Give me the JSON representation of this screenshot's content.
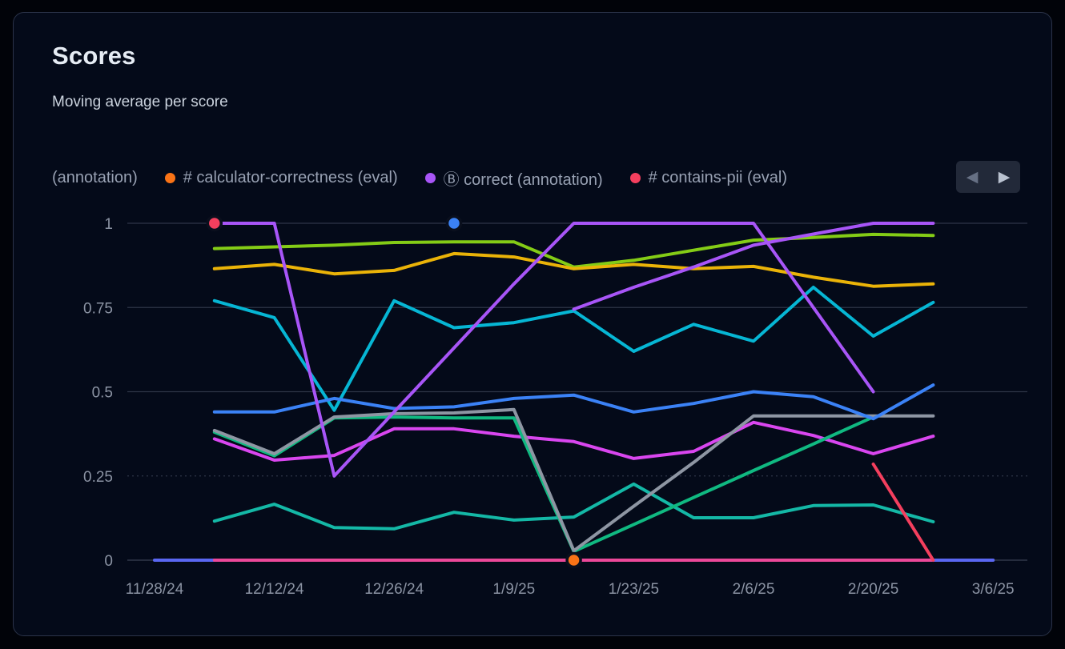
{
  "card": {
    "title": "Scores",
    "subtitle": "Moving average per score"
  },
  "legend": {
    "items": [
      {
        "label": "(annotation)",
        "color": null
      },
      {
        "label": "# calculator-correctness (eval)",
        "color": "#f97316"
      },
      {
        "label": "Ⓑ correct (annotation)",
        "color": "#a855f7"
      },
      {
        "label": "# contains-pii (eval)",
        "color": "#f43f5e"
      }
    ],
    "prev_arrow": "◀",
    "next_arrow": "▶"
  },
  "chart_data": {
    "type": "line",
    "title": "Scores",
    "subtitle": "Moving average per score",
    "ylim": [
      0,
      1
    ],
    "y_ticks": [
      0,
      0.25,
      0.5,
      0.75,
      1
    ],
    "y_tick_labels": [
      "0",
      "0.25",
      "0.5",
      "0.75",
      "1"
    ],
    "x_tick_labels": [
      "11/28/24",
      "12/12/24",
      "12/26/24",
      "1/9/25",
      "1/23/25",
      "2/6/25",
      "2/20/25",
      "3/6/25"
    ],
    "x_slot_count": 15,
    "x_slot_unit": "week (ticks on every second slot)",
    "grid": {
      "line_color": "#2e3547",
      "dotted_tick": 0.25,
      "zero_line_color": "#394053"
    },
    "series": [
      {
        "name": "indigo-zero-left",
        "color": "#5a67f2",
        "values": [
          0,
          0,
          null,
          null,
          null,
          null,
          null,
          null,
          null,
          null,
          null,
          null,
          null,
          null,
          null
        ]
      },
      {
        "name": "pink-zero",
        "color": "#ec4899",
        "values": [
          null,
          0,
          0,
          0,
          0,
          0,
          0,
          0,
          0,
          0,
          0,
          0,
          0,
          0,
          null
        ]
      },
      {
        "name": "indigo-zero-right",
        "color": "#5a67f2",
        "values": [
          null,
          null,
          null,
          null,
          null,
          null,
          null,
          null,
          null,
          null,
          null,
          null,
          null,
          0,
          0
        ]
      },
      {
        "name": "lime",
        "color": "#84cc16",
        "values": [
          null,
          0.925,
          0.93,
          0.935,
          0.943,
          0.945,
          0.945,
          0.87,
          0.89,
          0.92,
          0.95,
          0.958,
          0.967,
          0.964,
          null
        ]
      },
      {
        "name": "amber",
        "color": "#eab308",
        "values": [
          null,
          0.865,
          0.878,
          0.85,
          0.86,
          0.91,
          0.9,
          0.865,
          0.878,
          0.865,
          0.872,
          0.84,
          0.813,
          0.82,
          null
        ]
      },
      {
        "name": "cyan",
        "color": "#06b6d4",
        "values": [
          null,
          0.77,
          0.72,
          0.445,
          0.77,
          0.69,
          0.705,
          0.74,
          0.62,
          0.7,
          0.65,
          0.81,
          0.665,
          0.765,
          null
        ]
      },
      {
        "name": "magenta",
        "color": "#d946ef",
        "values": [
          null,
          0.36,
          0.297,
          0.311,
          0.39,
          0.39,
          0.368,
          0.352,
          0.302,
          0.323,
          0.409,
          0.37,
          0.316,
          0.368,
          null
        ]
      },
      {
        "name": "teal",
        "color": "#14b8a6",
        "values": [
          null,
          0.116,
          0.166,
          0.097,
          0.093,
          0.142,
          0.119,
          0.128,
          0.226,
          0.126,
          0.126,
          0.162,
          0.164,
          0.114,
          null
        ]
      },
      {
        "name": "emerald",
        "color": "#10b981",
        "values": [
          null,
          0.38,
          0.31,
          0.422,
          0.425,
          0.422,
          0.422,
          0.026,
          0.106,
          0.186,
          0.266,
          0.345,
          0.425,
          null,
          null
        ]
      },
      {
        "name": "gray",
        "color": "#8e96a3",
        "values": [
          null,
          0.385,
          0.316,
          0.425,
          0.435,
          0.437,
          0.447,
          0.028,
          0.16,
          0.29,
          0.428,
          0.428,
          0.428,
          0.428,
          null
        ]
      },
      {
        "name": "blue",
        "color": "#3b82f6",
        "values": [
          null,
          0.44,
          0.44,
          0.48,
          0.45,
          0.455,
          0.48,
          0.49,
          0.44,
          0.465,
          0.5,
          0.485,
          0.42,
          0.52,
          null
        ]
      },
      {
        "name": "purple-a",
        "color": "#a855f7",
        "values": [
          null,
          1,
          1,
          0.25,
          0.44,
          0.63,
          0.82,
          1,
          1,
          1,
          1,
          0.75,
          0.5,
          null,
          null
        ]
      },
      {
        "name": "purple-b",
        "color": "#a855f7",
        "values": [
          null,
          null,
          null,
          null,
          null,
          null,
          null,
          0.745,
          0.81,
          0.87,
          0.935,
          0.968,
          1,
          1,
          null
        ]
      },
      {
        "name": "red",
        "color": "#f43f5e",
        "values": [
          null,
          null,
          null,
          null,
          null,
          null,
          null,
          null,
          null,
          null,
          null,
          null,
          0.285,
          0,
          null
        ]
      }
    ],
    "markers": [
      {
        "name": "contains-pii-highlight",
        "x_index": 1,
        "value": 1,
        "color": "#f43f5e"
      },
      {
        "name": "blue-highlight",
        "x_index": 5,
        "value": 1,
        "color": "#3b82f6"
      },
      {
        "name": "calculator-correctness-highlight",
        "x_index": 7,
        "value": 0,
        "color": "#f97316"
      }
    ]
  }
}
